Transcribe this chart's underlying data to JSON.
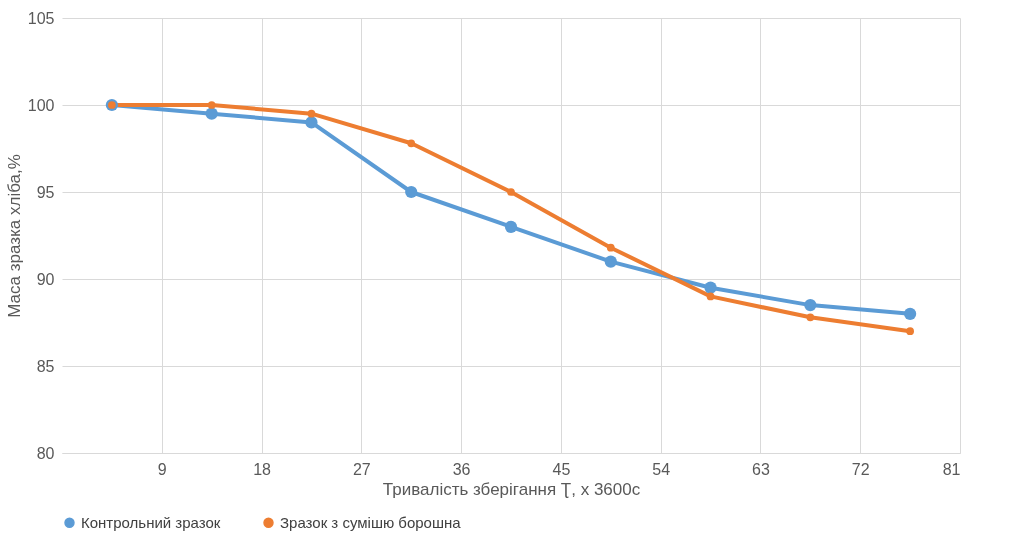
{
  "chart_data": {
    "type": "line",
    "xlabel": "Тривалість зберігання Ʈ, х 3600с",
    "ylabel": "Маса зразка хліба,%",
    "x": [
      4.5,
      13.5,
      22.5,
      31.5,
      40.5,
      49.5,
      58.5,
      67.5,
      76.5
    ],
    "series": [
      {
        "name": "Контрольний зразок",
        "color": "#5b9bd5",
        "values": [
          100,
          99.5,
          99,
          95,
          93,
          91,
          89.5,
          88.5,
          88
        ]
      },
      {
        "name": "Зразок з сумішю борошна",
        "color": "#ed7d31",
        "values": [
          100,
          100,
          99.5,
          97.8,
          95,
          91.8,
          89,
          87.8,
          87
        ]
      }
    ],
    "xlim": [
      0,
      81
    ],
    "xticks": [
      9,
      18,
      27,
      36,
      45,
      54,
      63,
      72,
      81
    ],
    "ylim": [
      80,
      105
    ],
    "yticks": [
      80,
      85,
      90,
      95,
      100,
      105
    ],
    "grid": true,
    "legend": "bottom",
    "marker": "circle"
  }
}
